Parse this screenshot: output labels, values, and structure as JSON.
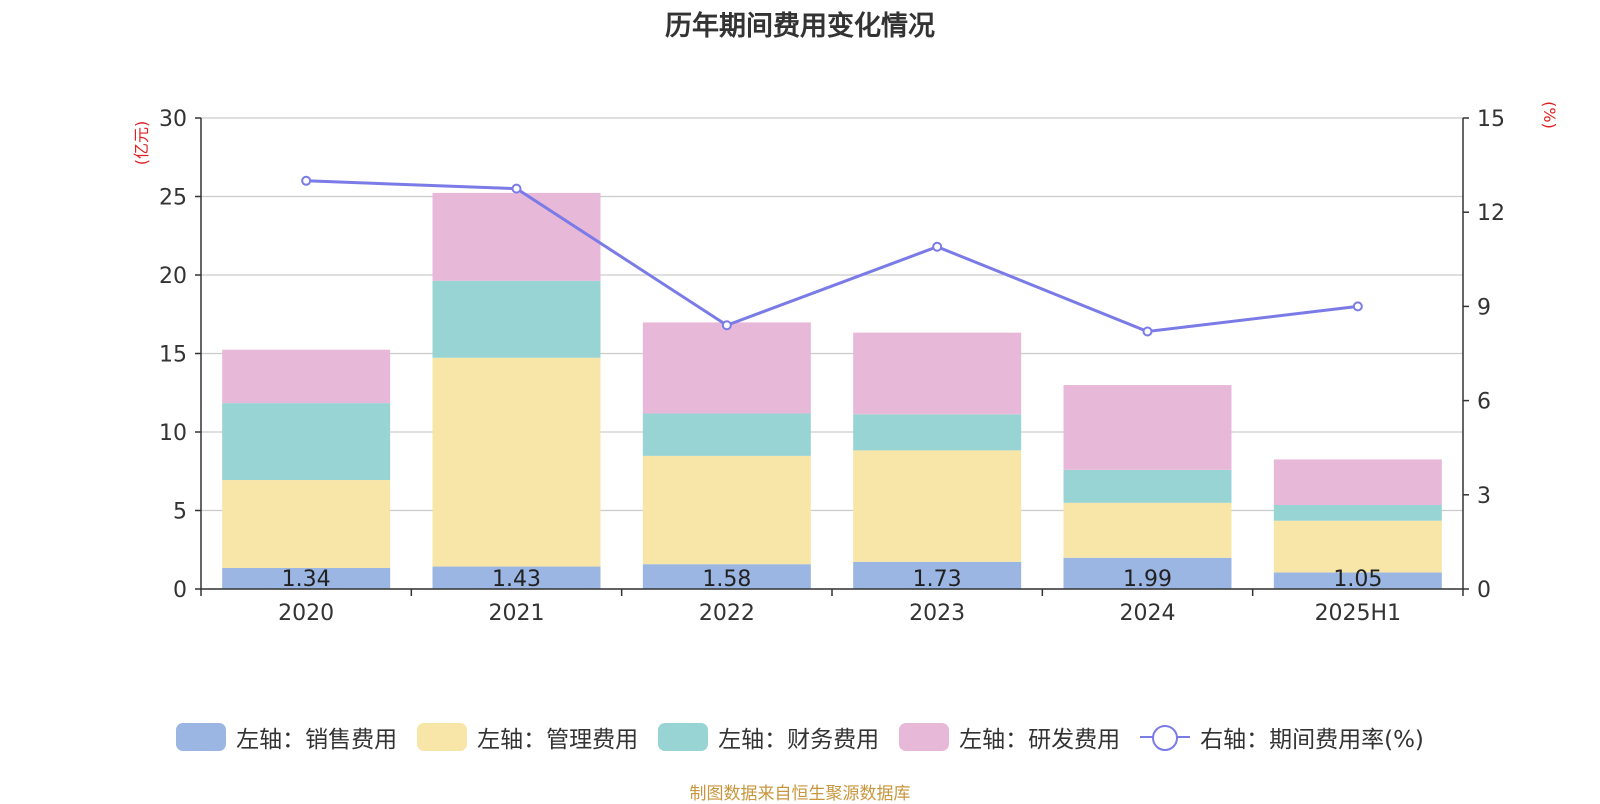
{
  "title": "历年期间费用变化情况",
  "footer": "制图数据来自恒生聚源数据库",
  "chart_data": {
    "type": "bar",
    "stacked": true,
    "categories": [
      "2020",
      "2021",
      "2022",
      "2023",
      "2024",
      "2025H1"
    ],
    "series": [
      {
        "name": "左轴：销售费用",
        "axis": "left",
        "color": "#9bb6e3",
        "values": [
          1.34,
          1.43,
          1.58,
          1.73,
          1.99,
          1.05
        ],
        "show_labels": true
      },
      {
        "name": "左轴：管理费用",
        "axis": "left",
        "color": "#f8e6a8",
        "values": [
          5.6,
          13.3,
          6.9,
          7.1,
          3.5,
          3.3
        ]
      },
      {
        "name": "左轴：财务费用",
        "axis": "left",
        "color": "#98d4d4",
        "values": [
          4.9,
          4.9,
          2.7,
          2.3,
          2.1,
          1.0
        ]
      },
      {
        "name": "左轴：研发费用",
        "axis": "left",
        "color": "#e8b8d8",
        "values": [
          3.4,
          5.6,
          5.8,
          5.2,
          5.4,
          2.9
        ]
      },
      {
        "name": "右轴：期间费用率(%)",
        "axis": "right",
        "type": "line",
        "color": "#7b7be8",
        "values": [
          13.0,
          12.75,
          8.4,
          10.9,
          8.2,
          9.0
        ]
      }
    ],
    "y_left": {
      "label": "(亿元)",
      "ylim": [
        0,
        30
      ],
      "ticks": [
        "0",
        "5",
        "10",
        "15",
        "20",
        "25",
        "30"
      ]
    },
    "y_right": {
      "label": "(%)",
      "ylim": [
        0,
        15
      ],
      "ticks": [
        "0",
        "3",
        "6",
        "9",
        "12",
        "15"
      ]
    },
    "grid": true,
    "legend_position": "bottom"
  }
}
